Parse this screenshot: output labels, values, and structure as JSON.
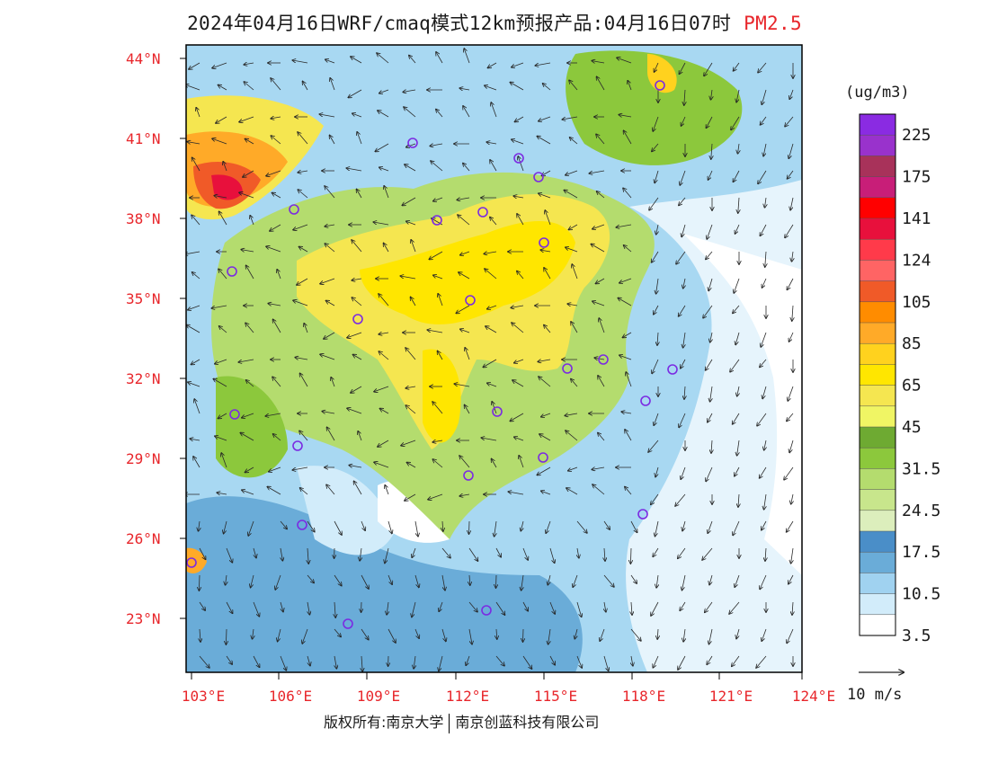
{
  "title": {
    "main": "2024年04月16日WRF/cmaq模式12km预报产品:04月16日07时",
    "pollutant": "PM2.5"
  },
  "footer": {
    "left": "版权所有:南京大学",
    "right": "南京创蓝科技有限公司"
  },
  "map": {
    "lat_labels": [
      "44°N",
      "41°N",
      "38°N",
      "35°N",
      "32°N",
      "29°N",
      "26°N",
      "23°N"
    ],
    "lon_labels": [
      "103°E",
      "106°E",
      "109°E",
      "112°E",
      "115°E",
      "118°E",
      "121°E",
      "124°E"
    ],
    "label_color": "#e8262b"
  },
  "legend": {
    "unit": "(ug/m3)",
    "colors": [
      "#8a2be2",
      "#9932cc",
      "#a8325a",
      "#c81e78",
      "#ff0000",
      "#e8103c",
      "#ff3a4a",
      "#ff6464",
      "#f05a28",
      "#ff8c00",
      "#ffaa28",
      "#ffd21e",
      "#ffe600",
      "#f5e650",
      "#f0f564",
      "#6eaa32",
      "#8cc83c",
      "#b4dc6e",
      "#c8e68c",
      "#dceebc",
      "#4a8ec8",
      "#6aacd8",
      "#a0d2f0",
      "#d2ecfa",
      "#ffffff"
    ],
    "labels": [
      "225",
      "175",
      "141",
      "124",
      "105",
      "85",
      "65",
      "45",
      "31.5",
      "24.5",
      "17.5",
      "10.5",
      "3.5"
    ]
  },
  "wind_scale": {
    "label": "10 m/s"
  }
}
